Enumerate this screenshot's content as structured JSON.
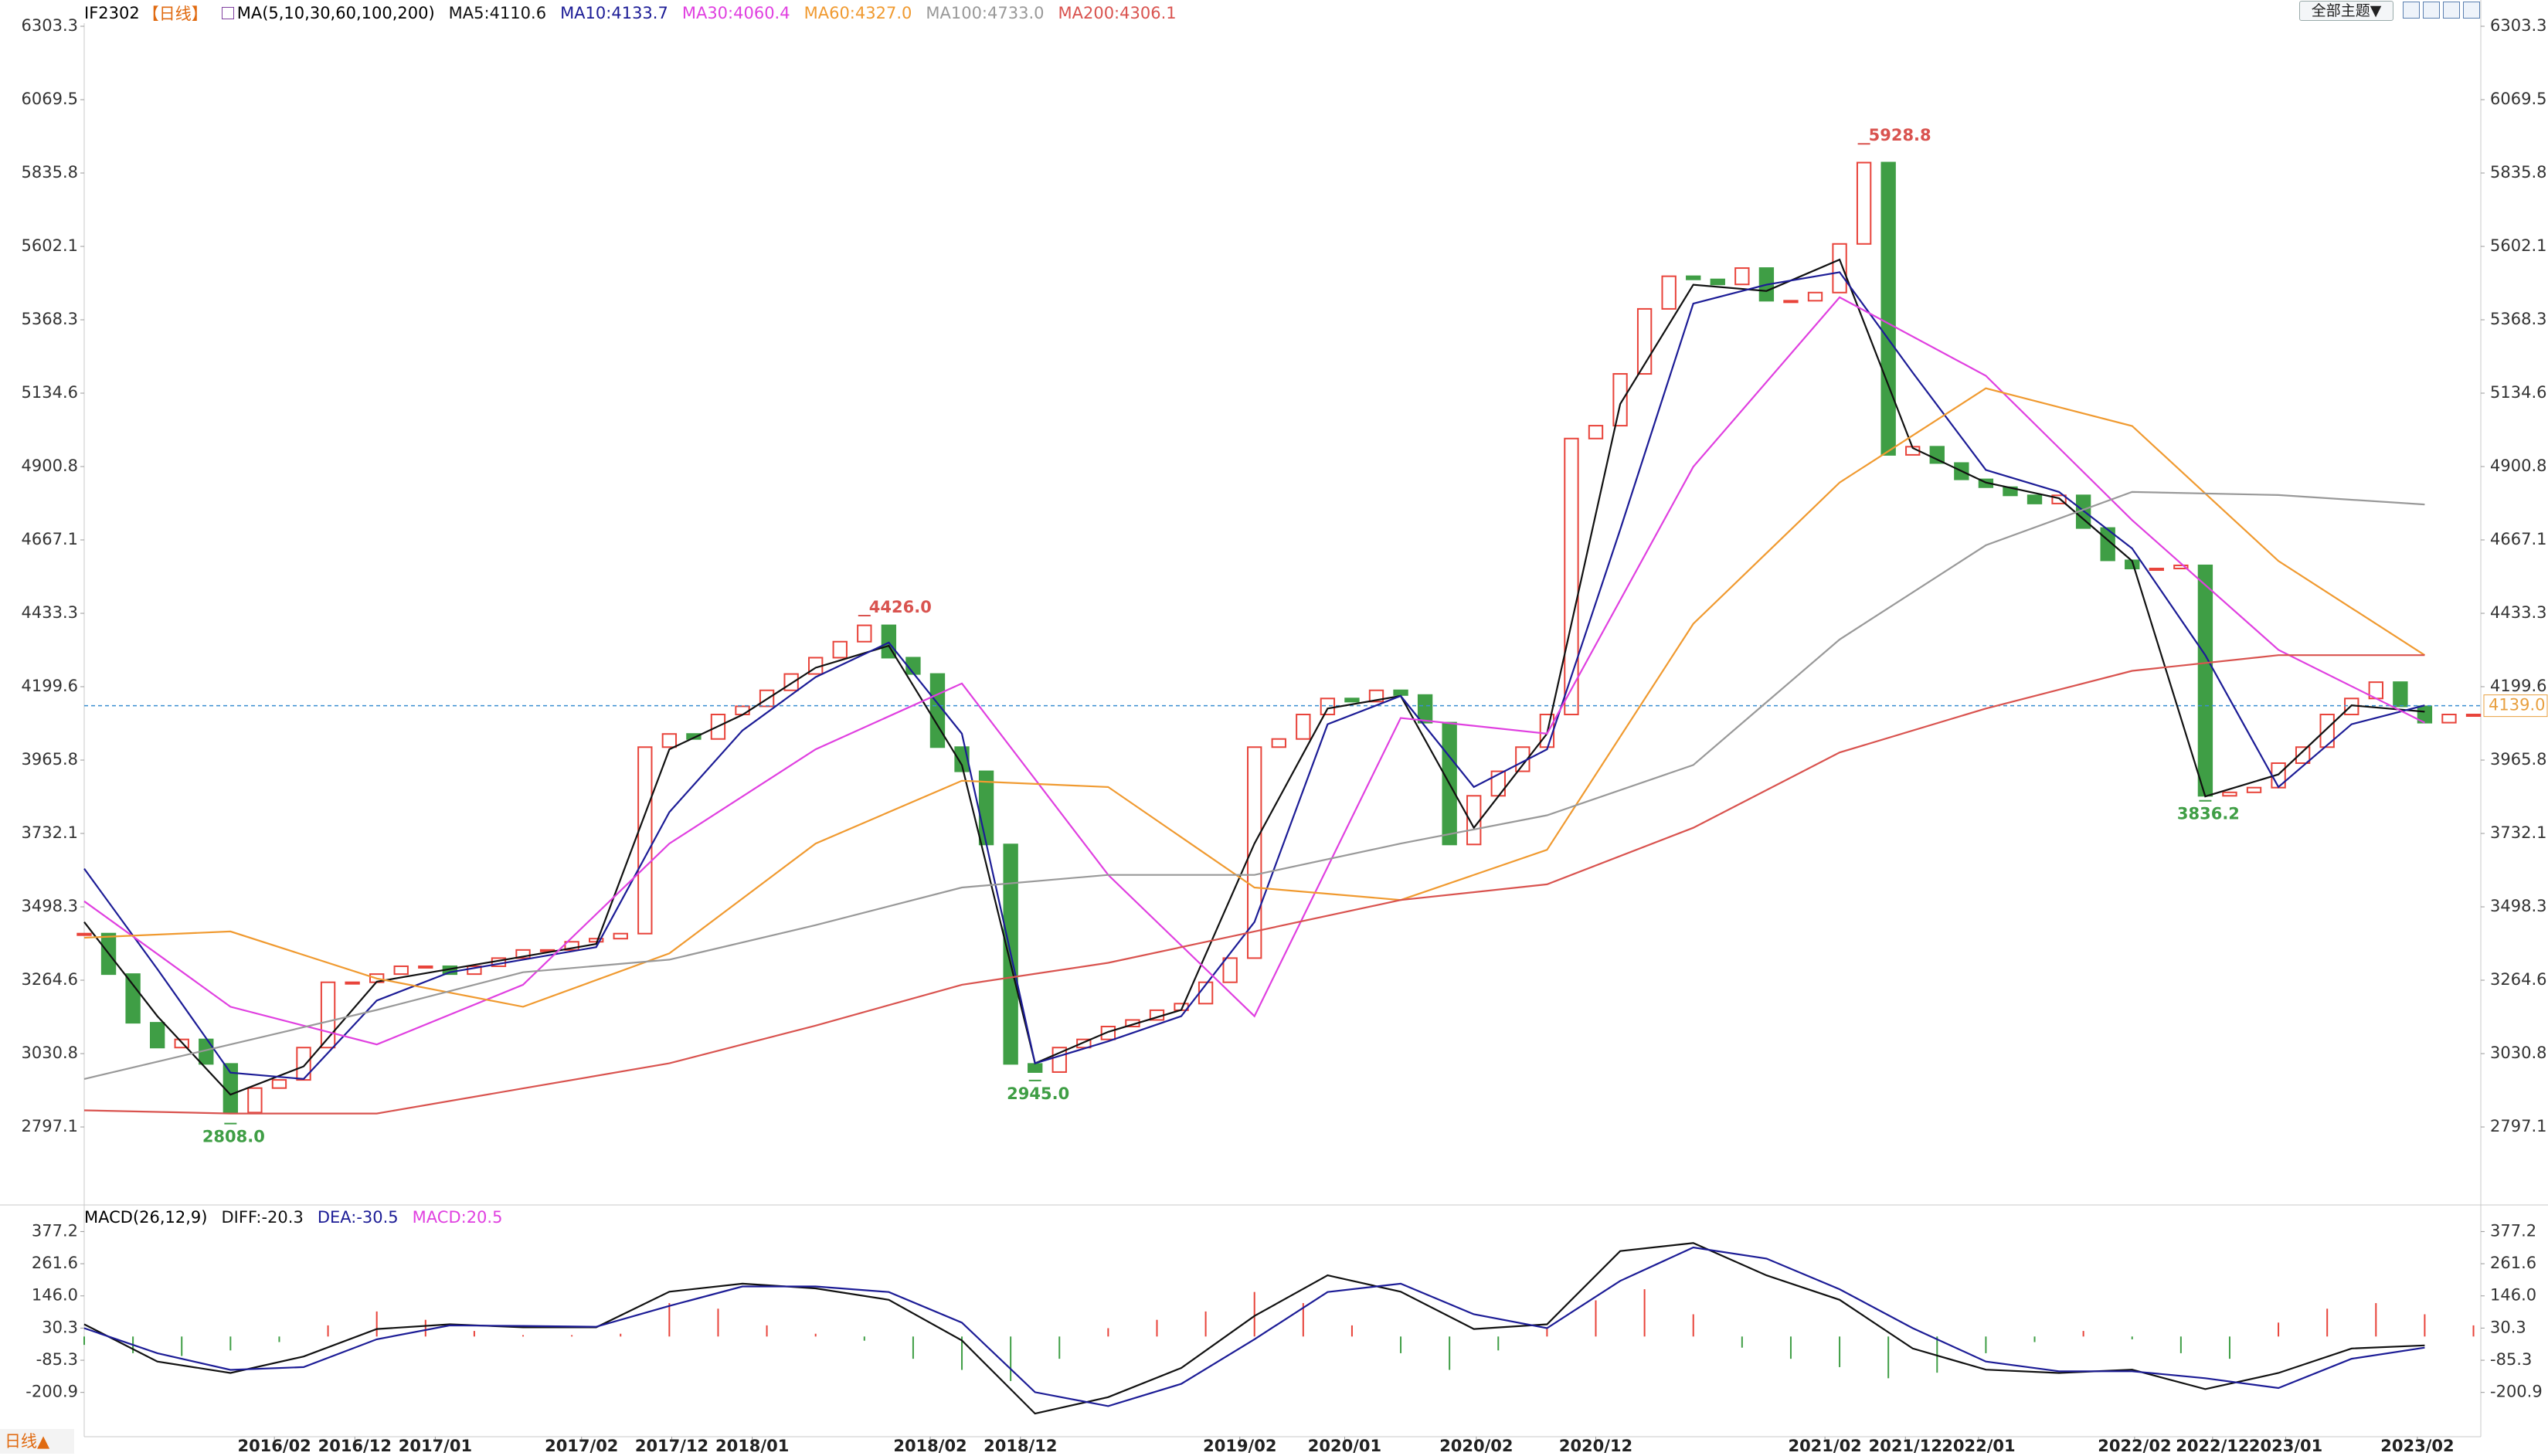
{
  "app": {
    "button": "全部主题▼",
    "tab": "日线▲"
  },
  "chart_data": [
    {
      "type": "candlestick",
      "symbol": "IF2302",
      "period": "【日线】",
      "indicator": "MA(5,10,30,60,100,200)",
      "xlim": [
        0,
        98.3
      ],
      "ylim": [
        2563.4,
        6303.3
      ],
      "yticks": [
        6303.3,
        6069.5,
        5835.8,
        5602.1,
        5368.3,
        5134.6,
        4900.8,
        4667.1,
        4433.3,
        4199.6,
        3965.8,
        3732.1,
        3498.3,
        3264.6,
        3030.8,
        2797.1
      ],
      "up_color": "#e8433a",
      "down_color": "#3f9e45",
      "values": [
        3413,
        3284,
        3129,
        3050,
        3076,
        2998,
        2843,
        2921,
        2947,
        3050,
        3258,
        3258,
        3284,
        3309,
        3309,
        3284,
        3309,
        3335,
        3361,
        3361,
        3387,
        3397,
        3413,
        4007,
        4049,
        4033,
        4111,
        4137,
        4188,
        4240,
        4292,
        4343,
        4395,
        4292,
        4240,
        4007,
        3930,
        3697,
        2998,
        2972,
        3050,
        3076,
        3117,
        3138,
        3169,
        3190,
        3258,
        3335,
        4007,
        4033,
        4111,
        4162,
        4152,
        4188,
        4173,
        4085,
        3697,
        3852,
        3930,
        4007,
        4111,
        4990,
        5031,
        5196,
        5403,
        5507,
        5497,
        5481,
        5533,
        5429,
        5429,
        5455,
        5610,
        5869,
        4938,
        4964,
        4912,
        4860,
        4835,
        4809,
        4783,
        4809,
        4705,
        4602,
        4576,
        4576,
        4586,
        3852,
        3863,
        3878,
        3956,
        4007,
        4111,
        4162,
        4214,
        4137,
        4085,
        4111,
        4111
      ],
      "series": [
        {
          "name": "MA5:4110.6",
          "color": "#111111",
          "x": [
            0,
            3,
            6,
            9,
            12,
            15,
            18,
            21,
            24,
            27,
            30,
            33,
            36,
            39,
            42,
            45,
            48,
            51,
            54,
            57,
            60,
            63,
            66,
            69,
            72,
            75,
            78,
            81,
            84,
            87,
            90,
            93,
            96
          ],
          "values": [
            3450,
            3150,
            2900,
            2990,
            3260,
            3300,
            3340,
            3380,
            4000,
            4110,
            4260,
            4330,
            3950,
            3000,
            3100,
            3170,
            3700,
            4130,
            4170,
            3750,
            4050,
            5100,
            5480,
            5460,
            5560,
            4960,
            4850,
            4800,
            4600,
            3850,
            3920,
            4140,
            4120
          ]
        },
        {
          "name": "MA10:4133.7",
          "color": "#1c1c96",
          "x": [
            0,
            3,
            6,
            9,
            12,
            15,
            18,
            21,
            24,
            27,
            30,
            33,
            36,
            39,
            42,
            45,
            48,
            51,
            54,
            57,
            60,
            63,
            66,
            69,
            72,
            75,
            78,
            81,
            84,
            87,
            90,
            93,
            96
          ],
          "values": [
            3620,
            3300,
            2970,
            2950,
            3200,
            3290,
            3330,
            3370,
            3800,
            4060,
            4230,
            4340,
            4050,
            3000,
            3070,
            3150,
            3450,
            4080,
            4170,
            3880,
            4000,
            4700,
            5420,
            5480,
            5520,
            5200,
            4890,
            4820,
            4640,
            4300,
            3880,
            4080,
            4140
          ]
        },
        {
          "name": "MA30:4060.4",
          "color": "#e040e0",
          "x": [
            0,
            6,
            12,
            18,
            24,
            30,
            36,
            42,
            48,
            54,
            60,
            66,
            72,
            78,
            84,
            90,
            96
          ],
          "values": [
            3516,
            3180,
            3060,
            3250,
            3700,
            4000,
            4210,
            3600,
            3150,
            4100,
            4050,
            4900,
            5440,
            5190,
            4730,
            4317,
            4085
          ]
        },
        {
          "name": "MA60:4327.0",
          "color": "#f09a30",
          "x": [
            0,
            6,
            12,
            18,
            24,
            30,
            36,
            42,
            48,
            54,
            60,
            66,
            72,
            78,
            84,
            90,
            96
          ],
          "values": [
            3400,
            3420,
            3270,
            3180,
            3350,
            3700,
            3900,
            3880,
            3560,
            3520,
            3680,
            4400,
            4850,
            5150,
            5030,
            4600,
            4300
          ]
        },
        {
          "name": "MA100:4733.0",
          "color": "#999999",
          "x": [
            0,
            6,
            12,
            18,
            24,
            30,
            36,
            42,
            48,
            54,
            60,
            66,
            72,
            78,
            84,
            90,
            96
          ],
          "values": [
            2950,
            3060,
            3170,
            3290,
            3330,
            3440,
            3560,
            3600,
            3600,
            3700,
            3790,
            3950,
            4350,
            4650,
            4820,
            4810,
            4780
          ]
        },
        {
          "name": "MA200:4306.1",
          "color": "#d9534f",
          "x": [
            0,
            6,
            12,
            18,
            24,
            30,
            36,
            42,
            48,
            54,
            60,
            66,
            72,
            78,
            84,
            90,
            96
          ],
          "values": [
            2850,
            2840,
            2840,
            2920,
            3000,
            3120,
            3250,
            3320,
            3420,
            3520,
            3570,
            3750,
            3990,
            4130,
            4250,
            4300,
            4300
          ]
        }
      ],
      "annotations": [
        {
          "x": 73,
          "value": 5928.8,
          "color": "#d9534f",
          "side": "high"
        },
        {
          "x": 32,
          "value": 4426,
          "label": "4426.0",
          "color": "#d9534f",
          "side": "high"
        },
        {
          "x": 39,
          "value": 2945,
          "label": "2945.0",
          "color": "#3f9e45",
          "side": "low"
        },
        {
          "x": 6,
          "value": 2808,
          "label": "2808.0",
          "color": "#3f9e45",
          "side": "low"
        },
        {
          "x": 87,
          "value": 3836.2,
          "color": "#3f9e45",
          "side": "low"
        }
      ],
      "last": {
        "value": 4139,
        "label": "4139.0",
        "color": "#e8a040",
        "line_color": "#3a8fd0"
      }
    },
    {
      "type": "macd",
      "title": "MACD(26,12,9)",
      "xlim": [
        0,
        98.3
      ],
      "ylim": [
        -360,
        445
      ],
      "yticks": [
        377.2,
        261.6,
        {
          "value": 146,
          "label": "146.0"
        },
        30.3,
        -85.3,
        -200.9
      ],
      "xticks": [
        {
          "value": 7.8,
          "label": "2016/02"
        },
        {
          "value": 11.1,
          "label": "2016/12"
        },
        {
          "value": 14.4,
          "label": "2017/01"
        },
        {
          "value": 20.4,
          "label": "2017/02"
        },
        {
          "value": 24.1,
          "label": "2017/12"
        },
        {
          "value": 27.4,
          "label": "2018/01"
        },
        {
          "value": 34.7,
          "label": "2018/02"
        },
        {
          "value": 38.4,
          "label": "2018/12"
        },
        {
          "value": 47.4,
          "label": "2019/02"
        },
        {
          "value": 51.7,
          "label": "2020/01"
        },
        {
          "value": 57.1,
          "label": "2020/02"
        },
        {
          "value": 62,
          "label": "2020/12"
        },
        {
          "value": 71.4,
          "label": "2021/02"
        },
        {
          "value": 74.7,
          "label": "2021/12"
        },
        {
          "value": 77.7,
          "label": "2022/01"
        },
        {
          "value": 84.1,
          "label": "2022/02"
        },
        {
          "value": 87.3,
          "label": "2022/12"
        },
        {
          "value": 90.3,
          "label": "2023/01"
        },
        {
          "value": 95.7,
          "label": "2023/02"
        }
      ],
      "series": [
        {
          "name": "DIFF:-20.3",
          "color": "#111111",
          "x": [
            0,
            3,
            6,
            9,
            12,
            15,
            18,
            21,
            24,
            27,
            30,
            33,
            36,
            39,
            42,
            45,
            48,
            51,
            54,
            57,
            60,
            63,
            66,
            69,
            72,
            75,
            78,
            81,
            84,
            87,
            90,
            93,
            96
          ],
          "values": [
            44,
            -90,
            -131,
            -72,
            27,
            44,
            33,
            33,
            161,
            190,
            173,
            132,
            -14,
            -277,
            -218,
            -113,
            74,
            220,
            161,
            27,
            44,
            307,
            336,
            220,
            132,
            -43,
            -119,
            -131,
            -119,
            -189,
            -131,
            -43,
            -32
          ]
        },
        {
          "name": "DEA:-30.5",
          "color": "#1c1c96",
          "x": [
            0,
            3,
            6,
            9,
            12,
            15,
            18,
            21,
            24,
            27,
            30,
            33,
            36,
            39,
            42,
            45,
            48,
            51,
            54,
            57,
            60,
            63,
            66,
            69,
            72,
            75,
            78,
            81,
            84,
            87,
            90,
            93,
            96
          ],
          "values": [
            30,
            -60,
            -120,
            -110,
            -10,
            40,
            38,
            35,
            110,
            180,
            180,
            160,
            50,
            -200,
            -250,
            -170,
            -10,
            160,
            190,
            80,
            30,
            200,
            320,
            280,
            170,
            30,
            -90,
            -125,
            -125,
            -150,
            -185,
            -80,
            -40
          ]
        }
      ],
      "histogram": {
        "name": "MACD:20.5",
        "color": "#e040e0",
        "up_color": "#e8433a",
        "down_color": "#3f9e45",
        "x": [
          0,
          2,
          4,
          6,
          8,
          10,
          12,
          14,
          16,
          18,
          20,
          22,
          24,
          26,
          28,
          30,
          32,
          34,
          36,
          38,
          40,
          42,
          44,
          46,
          48,
          50,
          52,
          54,
          56,
          58,
          60,
          62,
          64,
          66,
          68,
          70,
          72,
          74,
          76,
          78,
          80,
          82,
          84,
          86,
          88,
          90,
          92,
          94,
          96,
          98
        ],
        "values": [
          -30,
          -60,
          -70,
          -50,
          -20,
          40,
          90,
          60,
          20,
          5,
          5,
          10,
          120,
          100,
          40,
          10,
          -15,
          -80,
          -120,
          -160,
          -80,
          30,
          60,
          90,
          160,
          120,
          40,
          -60,
          -120,
          -50,
          30,
          130,
          170,
          80,
          -40,
          -80,
          -110,
          -150,
          -130,
          -60,
          -20,
          20,
          -10,
          -60,
          -80,
          50,
          100,
          120,
          80,
          40
        ]
      }
    }
  ]
}
